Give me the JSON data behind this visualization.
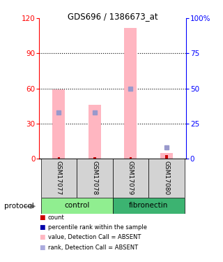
{
  "title": "GDS696 / 1386673_at",
  "samples": [
    "GSM17077",
    "GSM17078",
    "GSM17079",
    "GSM17080"
  ],
  "ylim_left": [
    0,
    120
  ],
  "ylim_right": [
    0,
    100
  ],
  "yticks_left": [
    0,
    30,
    60,
    90,
    120
  ],
  "yticks_right": [
    0,
    25,
    50,
    75,
    100
  ],
  "yticklabels_right": [
    "0",
    "25",
    "50",
    "75",
    "100%"
  ],
  "pink_bar_values": [
    59,
    46,
    112,
    5
  ],
  "blue_sq_values": [
    33,
    33,
    50,
    8
  ],
  "red_sq_values": [
    1,
    1,
    1,
    3
  ],
  "pink_bar_color": "#FFB6C1",
  "blue_sq_color": "#9999CC",
  "red_sq_color": "#CC0000",
  "bar_width": 0.35,
  "legend_items": [
    {
      "color": "#CC0000",
      "label": "count"
    },
    {
      "color": "#0000CC",
      "label": "percentile rank within the sample"
    },
    {
      "color": "#FFB6C1",
      "label": "value, Detection Call = ABSENT"
    },
    {
      "color": "#AAAADD",
      "label": "rank, Detection Call = ABSENT"
    }
  ],
  "control_color": "#90EE90",
  "fibronectin_color": "#3CB371",
  "gray_box_color": "#D3D3D3",
  "protocol_label": "protocol"
}
